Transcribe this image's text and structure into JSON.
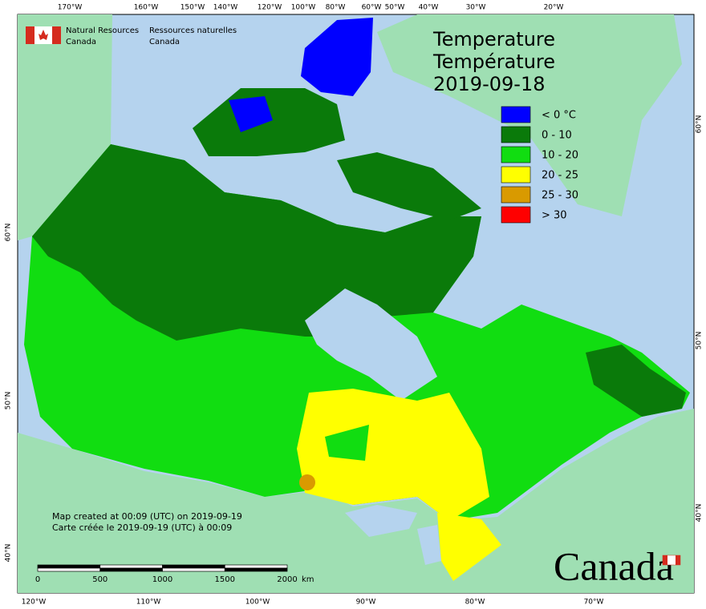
{
  "header": {
    "org_en": [
      "Natural Resources",
      "Canada"
    ],
    "org_fr": [
      "Ressources naturelles",
      "Canada"
    ]
  },
  "title": [
    "Temperature",
    "Température",
    "2019-09-18"
  ],
  "legend": [
    {
      "label": "< 0 °C",
      "color": "#0000ff"
    },
    {
      "label": "0 - 10",
      "color": "#0a7a0a"
    },
    {
      "label": "10 - 20",
      "color": "#11dd11"
    },
    {
      "label": "20 - 25",
      "color": "#ffff00"
    },
    {
      "label": "25 - 30",
      "color": "#d99a00"
    },
    {
      "label": "> 30",
      "color": "#ff0000"
    }
  ],
  "graticule": {
    "top": [
      "170°W",
      "160°W",
      "150°W",
      "140°W",
      "120°W",
      "100°W",
      "80°W",
      "60°W",
      "50°W",
      "40°W",
      "30°W",
      "20°W"
    ],
    "bottom": [
      "120°W",
      "110°W",
      "100°W",
      "90°W",
      "80°W",
      "70°W"
    ],
    "left": [
      "60°N",
      "50°N",
      "40°N"
    ],
    "right": [
      "60°N",
      "50°N",
      "40°N"
    ]
  },
  "credits": [
    "Map created at 00:09 (UTC) on 2019-09-19",
    "Carte créée le 2019-09-19 (UTC) à 00:09"
  ],
  "scale_bar": {
    "ticks": [
      "0",
      "500",
      "1000",
      "1500",
      "2000"
    ],
    "unit": "km"
  },
  "wordmark": "Canada"
}
